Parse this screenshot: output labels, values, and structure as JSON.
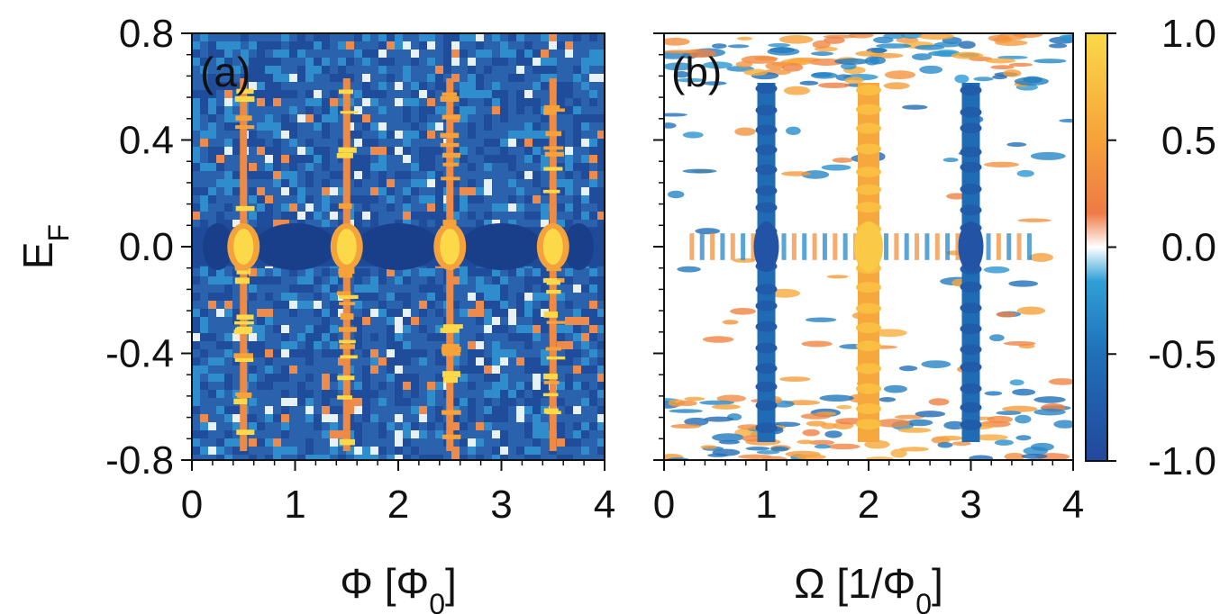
{
  "chart_data": [
    {
      "panel": "a",
      "type": "heatmap",
      "panel_label": "(a)",
      "xlabel_main": "Φ [Φ",
      "xlabel_sub": "0",
      "xlabel_close": "]",
      "ylabel_main": "E",
      "ylabel_sub": "F",
      "xlim": [
        0,
        4
      ],
      "ylim": [
        -0.8,
        0.8
      ],
      "x_ticks": [
        0,
        1,
        2,
        3,
        4
      ],
      "x_tick_labels": [
        "0",
        "1",
        "2",
        "3",
        "4"
      ],
      "y_ticks": [
        -0.8,
        -0.4,
        0.0,
        0.4,
        0.8
      ],
      "y_tick_labels": [
        "-0.8",
        "-0.4",
        "0.0",
        "0.4",
        "0.8"
      ],
      "peak_lines_x": [
        0.5,
        1.5,
        2.5,
        3.5
      ],
      "gap_band_y": [
        -0.06,
        0.06
      ]
    },
    {
      "panel": "b",
      "type": "heatmap",
      "panel_label": "(b)",
      "xlabel_main": "Ω [1/Φ",
      "xlabel_sub": "0",
      "xlabel_close": "]",
      "xlim": [
        0,
        4
      ],
      "ylim": [
        -0.8,
        0.8
      ],
      "x_ticks": [
        0,
        1,
        2,
        3,
        4
      ],
      "x_tick_labels": [
        "0",
        "1",
        "2",
        "3",
        "4"
      ],
      "harmonic_lines_x": [
        1,
        2,
        3
      ],
      "harmonic_signs": [
        -1,
        1,
        -1
      ]
    }
  ],
  "colorbar": {
    "range": [
      -1.0,
      1.0
    ],
    "ticks": [
      1.0,
      0.5,
      0.0,
      -0.5,
      -1.0
    ],
    "tick_labels": [
      "1.0",
      "0.5",
      "0.0",
      "-0.5",
      "-1.0"
    ],
    "colors": [
      "#23479b",
      "#1f70b8",
      "#2f9fd6",
      "#ffffff",
      "#ee7a45",
      "#f6a23a",
      "#fbd949"
    ]
  }
}
